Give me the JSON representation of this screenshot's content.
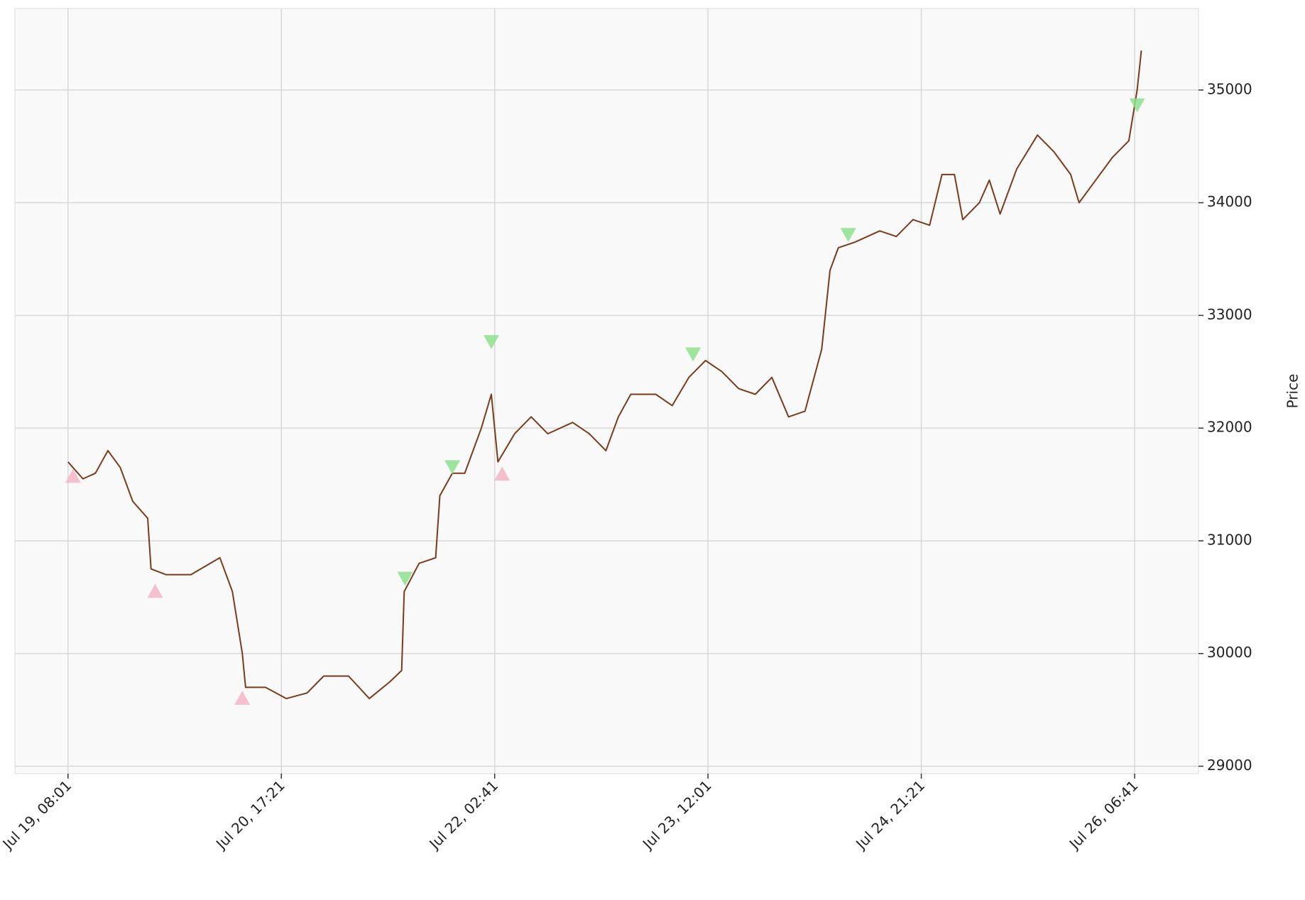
{
  "chart_data": {
    "type": "line",
    "y_label": "Price",
    "x": [
      0,
      140,
      257,
      374,
      490,
      607,
      747,
      778,
      918,
      1152,
      1424,
      1541,
      1634,
      1665,
      1852,
      2047,
      2241,
      2397,
      2630,
      2825,
      3019,
      3128,
      3152,
      3292,
      3447,
      3486,
      3603,
      3720,
      3875,
      3969,
      4031,
      4187,
      4342,
      4498,
      4731,
      4887,
      5043,
      5160,
      5276,
      5510,
      5665,
      5821,
      5977,
      6132,
      6288,
      6444,
      6599,
      6755,
      6910,
      7066,
      7144,
      7222,
      7377,
      7611,
      7766,
      7922,
      8078,
      8194,
      8311,
      8389,
      8545,
      8638,
      8739,
      8895,
      9089,
      9245,
      9401,
      9479,
      9635,
      9790,
      9946,
      10024,
      10063
    ],
    "values": [
      31700,
      31550,
      31600,
      31800,
      31650,
      31350,
      31200,
      30750,
      30700,
      30700,
      30850,
      30550,
      30000,
      29700,
      29700,
      29600,
      29650,
      29800,
      29800,
      29600,
      29750,
      29850,
      30550,
      30800,
      30850,
      31400,
      31600,
      31600,
      32000,
      32300,
      31700,
      31950,
      32100,
      31950,
      32050,
      31950,
      31800,
      32100,
      32300,
      32300,
      32200,
      32450,
      32600,
      32500,
      32350,
      32300,
      32450,
      32100,
      32150,
      32700,
      33400,
      33600,
      33650,
      33750,
      33700,
      33850,
      33800,
      34250,
      34250,
      33850,
      34000,
      34200,
      33900,
      34300,
      34600,
      34450,
      34250,
      34000,
      34200,
      34400,
      34550,
      35000,
      35350
    ],
    "color": "#7a3b1c",
    "markers": [
      {
        "marker": "triangle-up",
        "color": "#f4b6c6",
        "x": [
          47,
          817,
          1634,
          4070
        ],
        "values": [
          31570,
          30550,
          29600,
          31590
        ]
      },
      {
        "marker": "triangle-down",
        "color": "#8ee08e",
        "x": [
          3160,
          3603,
          3969,
          5860,
          7315,
          10024
        ],
        "values": [
          30670,
          31660,
          32770,
          32660,
          33720,
          34870
        ]
      }
    ],
    "xlim": [
      -498,
      10599
    ],
    "ylim": [
      28934,
      35723
    ],
    "xticks": [
      {
        "value": 0,
        "label": "Jul 19, 08:01"
      },
      {
        "value": 2000,
        "label": "Jul 20, 17:21"
      },
      {
        "value": 4000,
        "label": "Jul 22, 02:41"
      },
      {
        "value": 6000,
        "label": "Jul 23, 12:01"
      },
      {
        "value": 8000,
        "label": "Jul 24, 21:21"
      },
      {
        "value": 10000,
        "label": "Jul 26, 06:41"
      }
    ],
    "yticks": [
      29000,
      30000,
      31000,
      32000,
      33000,
      34000,
      35000
    ],
    "grid": true
  }
}
